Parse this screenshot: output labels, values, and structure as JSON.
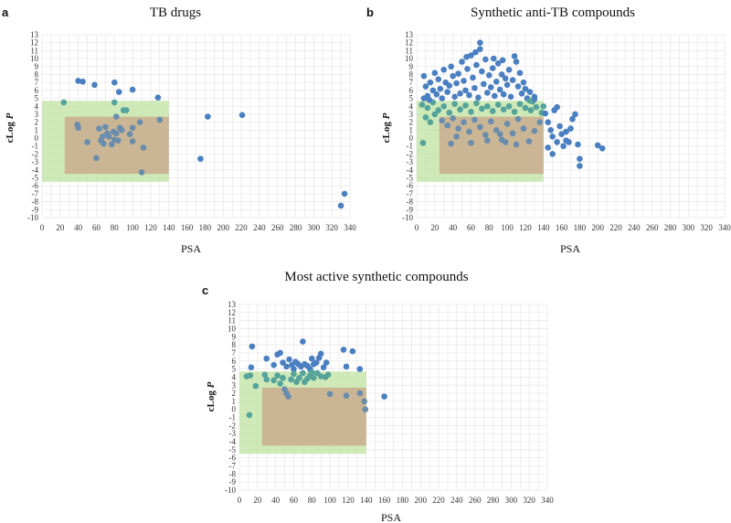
{
  "chart_data": [
    {
      "id": "a",
      "type": "scatter",
      "letter": "a",
      "title": "TB drugs",
      "xlabel": "PSA",
      "ylabel_prefix": "cLog ",
      "ylabel_italic": "P",
      "xlim": [
        0,
        340
      ],
      "ylim": [
        -10,
        13
      ],
      "xticks": [
        0,
        20,
        40,
        60,
        80,
        100,
        120,
        140,
        160,
        180,
        200,
        220,
        240,
        260,
        280,
        300,
        320,
        340
      ],
      "yticks": [
        -10,
        -9,
        -8,
        -7,
        -6,
        -5,
        -4,
        -3,
        -2,
        -1,
        0,
        1,
        2,
        3,
        4,
        5,
        6,
        7,
        8,
        9,
        10,
        11,
        12,
        13
      ],
      "regions": [
        {
          "name": "green-region",
          "x": [
            0,
            140
          ],
          "y": [
            -5.5,
            4.7
          ],
          "color": "#bfe3a0"
        },
        {
          "name": "brown-region",
          "x": [
            25,
            140
          ],
          "y": [
            -4.5,
            2.7
          ],
          "color": "#c9ad8e"
        }
      ],
      "points": [
        [
          40,
          7.2
        ],
        [
          45,
          7.1
        ],
        [
          58,
          6.7
        ],
        [
          80,
          7.0
        ],
        [
          85,
          5.8
        ],
        [
          100,
          6.1
        ],
        [
          128,
          5.1
        ],
        [
          24,
          4.5
        ],
        [
          80,
          4.5
        ],
        [
          90,
          3.5
        ],
        [
          93,
          3.5
        ],
        [
          82,
          2.7
        ],
        [
          130,
          2.3
        ],
        [
          183,
          2.7
        ],
        [
          221,
          2.9
        ],
        [
          39,
          1.7
        ],
        [
          40,
          1.3
        ],
        [
          50,
          -0.5
        ],
        [
          63,
          1.2
        ],
        [
          65,
          -0.3
        ],
        [
          67,
          0.2
        ],
        [
          68,
          -0.7
        ],
        [
          70,
          1.4
        ],
        [
          72,
          0.6
        ],
        [
          74,
          0.2
        ],
        [
          77,
          -0.8
        ],
        [
          79,
          0.8
        ],
        [
          80,
          -0.2
        ],
        [
          82,
          0.6
        ],
        [
          84,
          -0.3
        ],
        [
          86,
          1.3
        ],
        [
          88,
          1.0
        ],
        [
          97,
          0.5
        ],
        [
          100,
          1.3
        ],
        [
          100,
          -0.4
        ],
        [
          108,
          2.0
        ],
        [
          112,
          -1.2
        ],
        [
          60,
          -2.5
        ],
        [
          110,
          -4.3
        ],
        [
          175,
          -2.6
        ],
        [
          330,
          -8.5
        ],
        [
          334,
          -7.0
        ]
      ]
    },
    {
      "id": "b",
      "type": "scatter",
      "letter": "b",
      "title": "Synthetic anti-TB compounds",
      "xlabel": "PSA",
      "ylabel_prefix": "cLog ",
      "ylabel_italic": "P",
      "xlim": [
        0,
        340
      ],
      "ylim": [
        -10,
        13
      ],
      "xticks": [
        0,
        20,
        40,
        60,
        80,
        100,
        120,
        140,
        160,
        180,
        200,
        220,
        240,
        260,
        280,
        300,
        320,
        340
      ],
      "yticks": [
        -10,
        -9,
        -8,
        -7,
        -6,
        -5,
        -4,
        -3,
        -2,
        -1,
        0,
        1,
        2,
        3,
        4,
        5,
        6,
        7,
        8,
        9,
        10,
        11,
        12,
        13
      ],
      "regions": [
        {
          "name": "green-region",
          "x": [
            0,
            140
          ],
          "y": [
            -5.5,
            4.7
          ],
          "color": "#bfe3a0"
        },
        {
          "name": "brown-region",
          "x": [
            25,
            140
          ],
          "y": [
            -4.5,
            2.7
          ],
          "color": "#c9ad8e"
        }
      ],
      "points": [
        [
          8,
          7.8
        ],
        [
          10,
          6.5
        ],
        [
          12,
          5.3
        ],
        [
          15,
          7.0
        ],
        [
          18,
          6.0
        ],
        [
          20,
          8.2
        ],
        [
          22,
          5.5
        ],
        [
          24,
          7.4
        ],
        [
          26,
          6.2
        ],
        [
          28,
          5.0
        ],
        [
          30,
          8.6
        ],
        [
          32,
          7.0
        ],
        [
          34,
          5.8
        ],
        [
          36,
          6.6
        ],
        [
          38,
          9.0
        ],
        [
          40,
          7.8
        ],
        [
          42,
          5.2
        ],
        [
          44,
          6.9
        ],
        [
          46,
          8.1
        ],
        [
          48,
          5.6
        ],
        [
          50,
          9.6
        ],
        [
          52,
          7.2
        ],
        [
          54,
          6.0
        ],
        [
          56,
          8.7
        ],
        [
          58,
          5.4
        ],
        [
          60,
          10.4
        ],
        [
          62,
          7.6
        ],
        [
          64,
          6.3
        ],
        [
          66,
          9.2
        ],
        [
          68,
          5.1
        ],
        [
          70,
          12.0
        ],
        [
          70,
          11.2
        ],
        [
          72,
          8.4
        ],
        [
          74,
          6.8
        ],
        [
          76,
          9.9
        ],
        [
          78,
          5.7
        ],
        [
          80,
          7.9
        ],
        [
          82,
          6.4
        ],
        [
          84,
          8.8
        ],
        [
          86,
          5.3
        ],
        [
          88,
          7.1
        ],
        [
          90,
          9.4
        ],
        [
          92,
          6.1
        ],
        [
          94,
          8.0
        ],
        [
          96,
          5.5
        ],
        [
          98,
          7.5
        ],
        [
          100,
          6.7
        ],
        [
          102,
          8.6
        ],
        [
          104,
          5.2
        ],
        [
          106,
          7.3
        ],
        [
          108,
          10.3
        ],
        [
          110,
          9.6
        ],
        [
          112,
          6.5
        ],
        [
          114,
          8.2
        ],
        [
          116,
          5.6
        ],
        [
          118,
          7.0
        ],
        [
          120,
          6.2
        ],
        [
          122,
          5.0
        ],
        [
          125,
          5.8
        ],
        [
          128,
          4.6
        ],
        [
          130,
          5.2
        ],
        [
          55,
          10.2
        ],
        [
          65,
          10.8
        ],
        [
          85,
          10.0
        ],
        [
          95,
          9.8
        ],
        [
          6,
          4.2
        ],
        [
          12,
          3.8
        ],
        [
          18,
          4.5
        ],
        [
          24,
          3.5
        ],
        [
          30,
          4.0
        ],
        [
          36,
          3.2
        ],
        [
          42,
          4.3
        ],
        [
          48,
          3.6
        ],
        [
          54,
          4.1
        ],
        [
          60,
          3.3
        ],
        [
          66,
          4.4
        ],
        [
          72,
          3.7
        ],
        [
          78,
          4.0
        ],
        [
          84,
          3.4
        ],
        [
          90,
          4.2
        ],
        [
          96,
          3.6
        ],
        [
          102,
          4.0
        ],
        [
          108,
          3.3
        ],
        [
          114,
          4.3
        ],
        [
          120,
          3.8
        ],
        [
          126,
          3.5
        ],
        [
          132,
          3.9
        ],
        [
          138,
          3.2
        ],
        [
          15,
          2.0
        ],
        [
          20,
          3.0
        ],
        [
          10,
          2.6
        ],
        [
          28,
          2.2
        ],
        [
          34,
          1.6
        ],
        [
          40,
          2.5
        ],
        [
          46,
          1.2
        ],
        [
          52,
          2.0
        ],
        [
          58,
          0.8
        ],
        [
          64,
          2.3
        ],
        [
          70,
          1.4
        ],
        [
          76,
          0.4
        ],
        [
          82,
          2.1
        ],
        [
          88,
          1.0
        ],
        [
          94,
          -0.2
        ],
        [
          100,
          1.8
        ],
        [
          106,
          0.6
        ],
        [
          112,
          2.4
        ],
        [
          118,
          1.2
        ],
        [
          124,
          -0.4
        ],
        [
          130,
          0.9
        ],
        [
          136,
          2.0
        ],
        [
          44,
          0.2
        ],
        [
          60,
          -0.6
        ],
        [
          78,
          -0.3
        ],
        [
          92,
          0.5
        ],
        [
          110,
          -0.8
        ],
        [
          38,
          -0.7
        ],
        [
          98,
          -0.5
        ],
        [
          140,
          4.0
        ],
        [
          142,
          3.1
        ],
        [
          145,
          2.0
        ],
        [
          148,
          1.0
        ],
        [
          150,
          0.2
        ],
        [
          152,
          3.5
        ],
        [
          155,
          -0.5
        ],
        [
          158,
          1.5
        ],
        [
          160,
          0.5
        ],
        [
          162,
          -1.0
        ],
        [
          165,
          0.8
        ],
        [
          168,
          -0.5
        ],
        [
          170,
          1.2
        ],
        [
          172,
          2.4
        ],
        [
          175,
          3.0
        ],
        [
          178,
          -0.8
        ],
        [
          180,
          -2.6
        ],
        [
          180,
          -3.5
        ],
        [
          200,
          -0.9
        ],
        [
          205,
          -1.3
        ],
        [
          145,
          -1.2
        ],
        [
          150,
          -2.0
        ],
        [
          155,
          3.9
        ],
        [
          165,
          -0.3
        ],
        [
          7,
          -0.6
        ],
        [
          8,
          5.0
        ],
        [
          14,
          4.8
        ],
        [
          130,
          4.9
        ],
        [
          125,
          4.7
        ]
      ]
    },
    {
      "id": "c",
      "type": "scatter",
      "letter": "c",
      "title": "Most active synthetic compounds",
      "xlabel": "PSA",
      "ylabel_prefix": "cLog ",
      "ylabel_italic": "P",
      "xlim": [
        0,
        340
      ],
      "ylim": [
        -10,
        13
      ],
      "xticks": [
        0,
        20,
        40,
        60,
        80,
        100,
        120,
        140,
        160,
        180,
        200,
        220,
        240,
        260,
        280,
        300,
        320,
        340
      ],
      "yticks": [
        -10,
        -9,
        -8,
        -7,
        -6,
        -5,
        -4,
        -3,
        -2,
        -1,
        0,
        1,
        2,
        3,
        4,
        5,
        6,
        7,
        8,
        9,
        10,
        11,
        12,
        13
      ],
      "regions": [
        {
          "name": "green-region",
          "x": [
            0,
            140
          ],
          "y": [
            -5.5,
            4.7
          ],
          "color": "#bfe3a0"
        },
        {
          "name": "brown-region",
          "x": [
            25,
            140
          ],
          "y": [
            -4.5,
            2.7
          ],
          "color": "#c9ad8e"
        }
      ],
      "points": [
        [
          14,
          7.8
        ],
        [
          13,
          5.2
        ],
        [
          30,
          6.3
        ],
        [
          38,
          5.5
        ],
        [
          42,
          6.8
        ],
        [
          45,
          7.0
        ],
        [
          48,
          5.8
        ],
        [
          52,
          5.3
        ],
        [
          55,
          6.2
        ],
        [
          58,
          5.5
        ],
        [
          60,
          5.0
        ],
        [
          62,
          5.9
        ],
        [
          65,
          5.6
        ],
        [
          68,
          5.3
        ],
        [
          70,
          8.4
        ],
        [
          72,
          5.6
        ],
        [
          75,
          5.4
        ],
        [
          78,
          5.0
        ],
        [
          80,
          6.3
        ],
        [
          82,
          5.6
        ],
        [
          85,
          5.8
        ],
        [
          88,
          6.4
        ],
        [
          90,
          6.9
        ],
        [
          93,
          5.2
        ],
        [
          96,
          5.8
        ],
        [
          115,
          7.4
        ],
        [
          118,
          5.3
        ],
        [
          125,
          7.2
        ],
        [
          133,
          5.0
        ],
        [
          8,
          4.1
        ],
        [
          12,
          4.2
        ],
        [
          18,
          2.9
        ],
        [
          28,
          4.3
        ],
        [
          30,
          3.7
        ],
        [
          38,
          3.6
        ],
        [
          42,
          4.2
        ],
        [
          45,
          3.2
        ],
        [
          48,
          3.9
        ],
        [
          50,
          2.5
        ],
        [
          52,
          2.0
        ],
        [
          54,
          1.6
        ],
        [
          57,
          3.7
        ],
        [
          60,
          4.4
        ],
        [
          63,
          3.4
        ],
        [
          66,
          3.9
        ],
        [
          70,
          4.5
        ],
        [
          72,
          3.4
        ],
        [
          75,
          3.8
        ],
        [
          78,
          4.2
        ],
        [
          80,
          4.6
        ],
        [
          82,
          3.9
        ],
        [
          86,
          4.5
        ],
        [
          90,
          4.1
        ],
        [
          95,
          4.0
        ],
        [
          98,
          4.3
        ],
        [
          100,
          1.9
        ],
        [
          118,
          1.7
        ],
        [
          133,
          2.0
        ],
        [
          138,
          1.0
        ],
        [
          139,
          0.0
        ],
        [
          160,
          1.6
        ],
        [
          11,
          -0.7
        ]
      ]
    }
  ]
}
